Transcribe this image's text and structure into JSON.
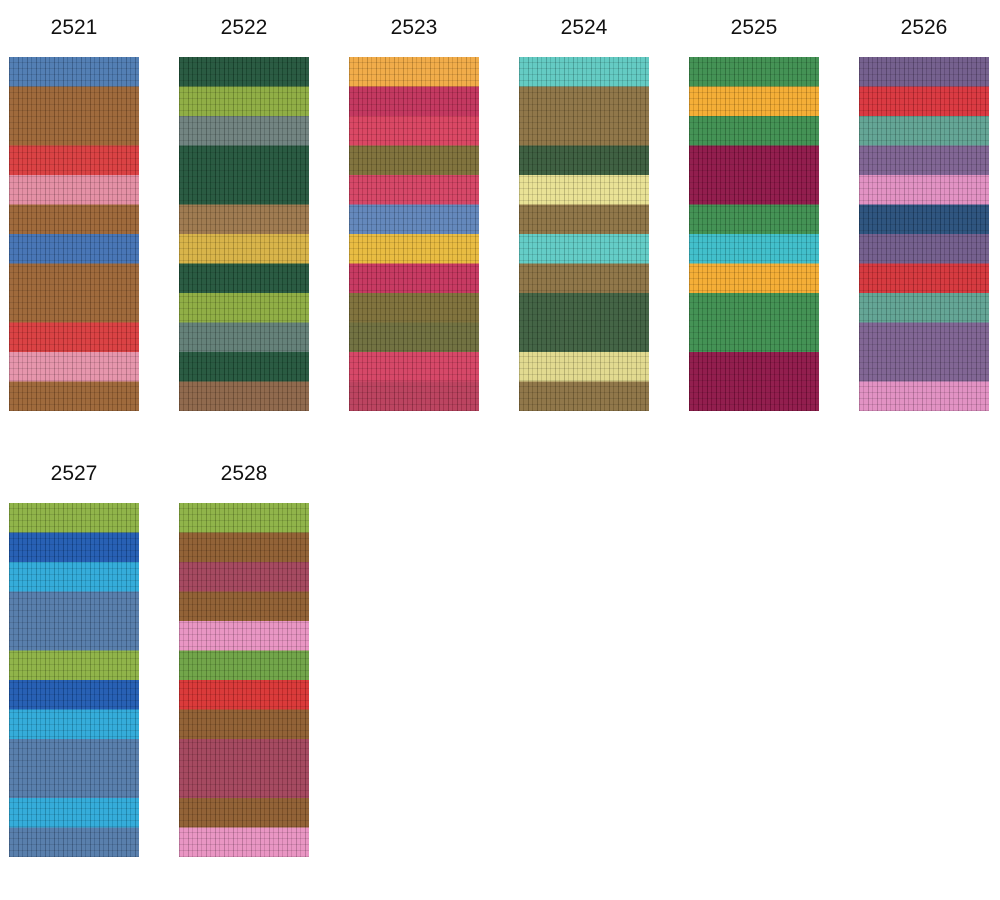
{
  "swatches": [
    {
      "label": "2521"
    },
    {
      "label": "2522"
    },
    {
      "label": "2523"
    },
    {
      "label": "2524"
    },
    {
      "label": "2525"
    },
    {
      "label": "2526"
    },
    {
      "label": "2527"
    },
    {
      "label": "2528"
    }
  ]
}
